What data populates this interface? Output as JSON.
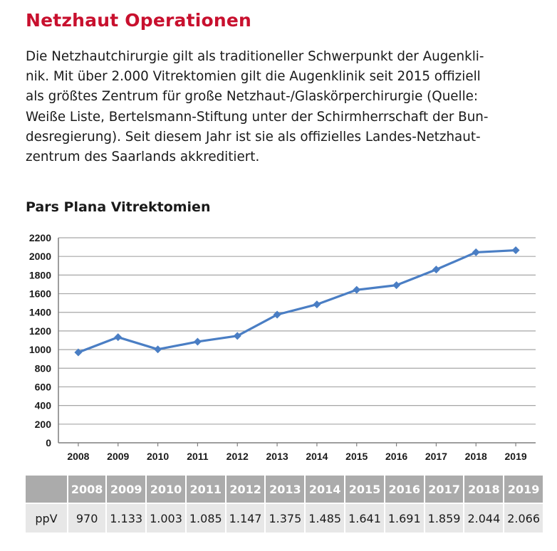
{
  "page": {
    "title": "Netzhaut Operationen",
    "intro_lines": [
      "Die Netzhautchirurgie gilt als traditioneller Schwerpunkt der Augenkli-",
      "nik. Mit über 2.000 Vitrektomien gilt die Augenklinik seit 2015 offiziell",
      "als größtes Zentrum für große Netzhaut-/Glaskörperchirurgie (Quelle:",
      "Weiße Liste, Bertelsmann-Stiftung unter der Schirmherrschaft der Bun-",
      "desregierung). Seit diesem Jahr ist sie als offizielles Landes-Netzhaut-",
      "zentrum des Saarlands akkreditiert."
    ]
  },
  "chart_data": {
    "type": "line",
    "title": "Pars Plana Vitrektomien",
    "xlabel": "",
    "ylabel": "",
    "categories": [
      "2008",
      "2009",
      "2010",
      "2011",
      "2012",
      "2013",
      "2014",
      "2015",
      "2016",
      "2017",
      "2018",
      "2019"
    ],
    "series": [
      {
        "values": [
          970,
          1133,
          1003,
          1085,
          1147,
          1375,
          1485,
          1641,
          1691,
          1859,
          2044,
          2066
        ]
      }
    ],
    "ylim": [
      0,
      2200
    ],
    "yticks": [
      0,
      200,
      400,
      600,
      800,
      1000,
      1200,
      1400,
      1600,
      1800,
      2000,
      2200
    ],
    "grid": true,
    "legend": "none",
    "colors": {
      "line": "#4a7ec4",
      "grid": "#a6a6a6",
      "axis": "#7f7f7f"
    }
  },
  "table": {
    "row_label": "ppV",
    "headers": [
      "2008",
      "2009",
      "2010",
      "2011",
      "2012",
      "2013",
      "2014",
      "2015",
      "2016",
      "2017",
      "2018",
      "2019"
    ],
    "values": [
      "970",
      "1.133",
      "1.003",
      "1.085",
      "1.147",
      "1.375",
      "1.485",
      "1.641",
      "1.691",
      "1.859",
      "2.044",
      "2.066"
    ],
    "colors": {
      "header_bg": "#ababab",
      "row_bg": "#e7e7e7"
    }
  }
}
